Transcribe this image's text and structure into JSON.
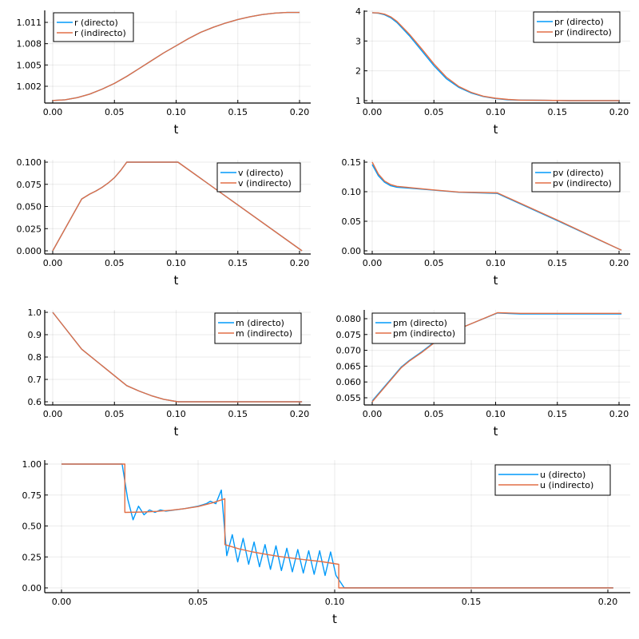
{
  "colors": {
    "directo": "#009AFA",
    "indirecto": "#E26F46"
  },
  "chart_data": [
    {
      "type": "line",
      "id": "r",
      "xlabel": "t",
      "ylabel": "",
      "xlim": [
        0,
        0.2
      ],
      "ylim": [
        1.0,
        1.012
      ],
      "xticks": [
        "0.00",
        "0.05",
        "0.10",
        "0.15",
        "0.20"
      ],
      "xtick_values": [
        0,
        0.05,
        0.1,
        0.15,
        0.2
      ],
      "yticks": [
        "1.002",
        "1.005",
        "1.008",
        "1.011"
      ],
      "ytick_values": [
        1.002,
        1.005,
        1.008,
        1.011
      ],
      "legend": "top-left",
      "series": [
        {
          "name": "r (directo)",
          "color": "#009AFA",
          "x": [
            0,
            0.01,
            0.02,
            0.03,
            0.04,
            0.05,
            0.06,
            0.07,
            0.08,
            0.09,
            0.1,
            0.11,
            0.12,
            0.13,
            0.14,
            0.15,
            0.16,
            0.17,
            0.18,
            0.19,
            0.2
          ],
          "y": [
            1.0,
            1.0001,
            1.0004,
            1.0009,
            1.0016,
            1.0024,
            1.0034,
            1.0045,
            1.0056,
            1.0067,
            1.0077,
            1.0087,
            1.0096,
            1.0103,
            1.0109,
            1.0114,
            1.0118,
            1.0121,
            1.0123,
            1.0124,
            1.0124
          ]
        },
        {
          "name": "r (indirecto)",
          "color": "#E26F46",
          "x": [
            0,
            0.01,
            0.02,
            0.03,
            0.04,
            0.05,
            0.06,
            0.07,
            0.08,
            0.09,
            0.1,
            0.11,
            0.12,
            0.13,
            0.14,
            0.15,
            0.16,
            0.17,
            0.18,
            0.19,
            0.2
          ],
          "y": [
            1.0,
            1.0001,
            1.0004,
            1.0009,
            1.0016,
            1.0024,
            1.0034,
            1.0045,
            1.0056,
            1.0067,
            1.0077,
            1.0087,
            1.0096,
            1.0103,
            1.0109,
            1.0114,
            1.0118,
            1.0121,
            1.0123,
            1.0124,
            1.0124
          ]
        }
      ]
    },
    {
      "type": "line",
      "id": "pr",
      "xlabel": "t",
      "ylabel": "",
      "xlim": [
        0,
        0.2
      ],
      "ylim": [
        1,
        4
      ],
      "xticks": [
        "0.00",
        "0.05",
        "0.10",
        "0.15",
        "0.20"
      ],
      "xtick_values": [
        0,
        0.05,
        0.1,
        0.15,
        0.2
      ],
      "yticks": [
        "1",
        "2",
        "3",
        "4"
      ],
      "ytick_values": [
        1,
        2,
        3,
        4
      ],
      "legend": "top-right",
      "series": [
        {
          "name": "pr (directo)",
          "color": "#009AFA",
          "x": [
            0,
            0.005,
            0.01,
            0.015,
            0.02,
            0.03,
            0.04,
            0.05,
            0.06,
            0.07,
            0.08,
            0.09,
            0.1,
            0.11,
            0.12,
            0.14,
            0.16,
            0.18,
            0.2
          ],
          "y": [
            3.95,
            3.93,
            3.88,
            3.78,
            3.62,
            3.18,
            2.68,
            2.17,
            1.74,
            1.45,
            1.26,
            1.14,
            1.07,
            1.03,
            1.02,
            1.01,
            1.0,
            1.0,
            1.0
          ]
        },
        {
          "name": "pr (indirecto)",
          "color": "#E26F46",
          "x": [
            0,
            0.005,
            0.01,
            0.015,
            0.02,
            0.03,
            0.04,
            0.05,
            0.06,
            0.07,
            0.08,
            0.09,
            0.1,
            0.11,
            0.12,
            0.14,
            0.16,
            0.18,
            0.2
          ],
          "y": [
            3.95,
            3.94,
            3.9,
            3.81,
            3.66,
            3.23,
            2.74,
            2.23,
            1.79,
            1.48,
            1.28,
            1.15,
            1.08,
            1.04,
            1.02,
            1.01,
            1.0,
            1.0,
            1.0
          ]
        }
      ]
    },
    {
      "type": "line",
      "id": "v",
      "xlabel": "t",
      "ylabel": "",
      "xlim": [
        0,
        0.2
      ],
      "ylim": [
        0,
        0.1
      ],
      "xticks": [
        "0.00",
        "0.05",
        "0.10",
        "0.15",
        "0.20"
      ],
      "xtick_values": [
        0,
        0.05,
        0.1,
        0.15,
        0.2
      ],
      "yticks": [
        "0.000",
        "0.025",
        "0.050",
        "0.075",
        "0.100"
      ],
      "ytick_values": [
        0,
        0.025,
        0.05,
        0.075,
        0.1
      ],
      "legend": "top-right",
      "series": [
        {
          "name": "v (directo)",
          "color": "#009AFA",
          "x": [
            0,
            0.0235,
            0.03,
            0.035,
            0.04,
            0.045,
            0.05,
            0.055,
            0.06,
            0.1015,
            0.202
          ],
          "y": [
            0,
            0.0585,
            0.064,
            0.0675,
            0.0715,
            0.0765,
            0.0825,
            0.0905,
            0.1,
            0.1,
            0
          ]
        },
        {
          "name": "v (indirecto)",
          "color": "#E26F46",
          "x": [
            0,
            0.0235,
            0.03,
            0.035,
            0.04,
            0.045,
            0.05,
            0.055,
            0.06,
            0.1015,
            0.202
          ],
          "y": [
            0,
            0.0585,
            0.064,
            0.0675,
            0.0715,
            0.0765,
            0.0825,
            0.0905,
            0.1,
            0.1,
            0
          ]
        }
      ]
    },
    {
      "type": "line",
      "id": "pv",
      "xlabel": "t",
      "ylabel": "",
      "xlim": [
        0,
        0.2
      ],
      "ylim": [
        0,
        0.15
      ],
      "xticks": [
        "0.00",
        "0.05",
        "0.10",
        "0.15",
        "0.20"
      ],
      "xtick_values": [
        0,
        0.05,
        0.1,
        0.15,
        0.2
      ],
      "yticks": [
        "0.00",
        "0.05",
        "0.10",
        "0.15"
      ],
      "ytick_values": [
        0,
        0.05,
        0.1,
        0.15
      ],
      "legend": "top-right",
      "series": [
        {
          "name": "pv (directo)",
          "color": "#009AFA",
          "x": [
            0,
            0.005,
            0.01,
            0.015,
            0.02,
            0.03,
            0.05,
            0.07,
            0.1015,
            0.15,
            0.202
          ],
          "y": [
            0.146,
            0.127,
            0.116,
            0.11,
            0.1075,
            0.106,
            0.1025,
            0.099,
            0.097,
            0.051,
            0.001
          ]
        },
        {
          "name": "pv (indirecto)",
          "color": "#E26F46",
          "x": [
            0,
            0.005,
            0.01,
            0.015,
            0.02,
            0.03,
            0.05,
            0.07,
            0.1015,
            0.15,
            0.202
          ],
          "y": [
            0.15,
            0.13,
            0.118,
            0.112,
            0.109,
            0.107,
            0.103,
            0.0995,
            0.098,
            0.052,
            0.001
          ]
        }
      ]
    },
    {
      "type": "line",
      "id": "m",
      "xlabel": "t",
      "ylabel": "",
      "xlim": [
        0,
        0.2
      ],
      "ylim": [
        0.6,
        1.0
      ],
      "xticks": [
        "0.00",
        "0.05",
        "0.10",
        "0.15",
        "0.20"
      ],
      "xtick_values": [
        0,
        0.05,
        0.1,
        0.15,
        0.2
      ],
      "yticks": [
        "0.6",
        "0.7",
        "0.8",
        "0.9",
        "1.0"
      ],
      "ytick_values": [
        0.6,
        0.7,
        0.8,
        0.9,
        1.0
      ],
      "legend": "top-right",
      "series": [
        {
          "name": "m (directo)",
          "color": "#009AFA",
          "x": [
            0,
            0.0235,
            0.06,
            0.07,
            0.08,
            0.09,
            0.1015,
            0.202
          ],
          "y": [
            1.0,
            0.835,
            0.672,
            0.648,
            0.627,
            0.611,
            0.6,
            0.6
          ]
        },
        {
          "name": "m (indirecto)",
          "color": "#E26F46",
          "x": [
            0,
            0.0235,
            0.06,
            0.07,
            0.08,
            0.09,
            0.1015,
            0.202
          ],
          "y": [
            1.0,
            0.835,
            0.672,
            0.648,
            0.627,
            0.611,
            0.6,
            0.6
          ]
        }
      ]
    },
    {
      "type": "line",
      "id": "pm",
      "xlabel": "t",
      "ylabel": "",
      "xlim": [
        0,
        0.2
      ],
      "ylim": [
        0.053,
        0.0825
      ],
      "xticks": [
        "0.00",
        "0.05",
        "0.10",
        "0.15",
        "0.20"
      ],
      "xtick_values": [
        0,
        0.05,
        0.1,
        0.15,
        0.2
      ],
      "yticks": [
        "0.055",
        "0.060",
        "0.065",
        "0.070",
        "0.075",
        "0.080"
      ],
      "ytick_values": [
        0.055,
        0.06,
        0.065,
        0.07,
        0.075,
        0.08
      ],
      "legend": "top-left",
      "series": [
        {
          "name": "pm (directo)",
          "color": "#009AFA",
          "x": [
            0,
            0.0235,
            0.03,
            0.04,
            0.05,
            0.06,
            0.1015,
            0.12,
            0.202
          ],
          "y": [
            0.054,
            0.0647,
            0.0668,
            0.0695,
            0.0725,
            0.0752,
            0.0818,
            0.0815,
            0.0815
          ]
        },
        {
          "name": "pm (indirecto)",
          "color": "#E26F46",
          "x": [
            0,
            0.0235,
            0.03,
            0.04,
            0.05,
            0.06,
            0.1015,
            0.12,
            0.202
          ],
          "y": [
            0.0537,
            0.0645,
            0.0666,
            0.0693,
            0.0723,
            0.0751,
            0.0819,
            0.0817,
            0.0817
          ]
        }
      ]
    },
    {
      "type": "line",
      "id": "u",
      "xlabel": "t",
      "ylabel": "",
      "xlim": [
        0,
        0.2
      ],
      "ylim": [
        0,
        1
      ],
      "xticks": [
        "0.00",
        "0.05",
        "0.10",
        "0.15",
        "0.20"
      ],
      "xtick_values": [
        0,
        0.05,
        0.1,
        0.15,
        0.2
      ],
      "yticks": [
        "0.00",
        "0.25",
        "0.50",
        "0.75",
        "1.00"
      ],
      "ytick_values": [
        0,
        0.25,
        0.5,
        0.75,
        1.0
      ],
      "legend": "top-right",
      "series": [
        {
          "name": "u (directo)",
          "color": "#009AFA",
          "x": [
            0,
            0.0222,
            0.0242,
            0.0262,
            0.0282,
            0.0302,
            0.0322,
            0.0342,
            0.0362,
            0.0382,
            0.045,
            0.05,
            0.053,
            0.0545,
            0.0565,
            0.0585,
            0.0605,
            0.0625,
            0.0645,
            0.0665,
            0.0685,
            0.0705,
            0.0725,
            0.0745,
            0.0765,
            0.0785,
            0.0805,
            0.0825,
            0.0845,
            0.0865,
            0.0885,
            0.0905,
            0.0925,
            0.0945,
            0.0965,
            0.0985,
            0.1005,
            0.1035,
            0.202
          ],
          "y": [
            1.0,
            1.0,
            0.72,
            0.55,
            0.66,
            0.59,
            0.63,
            0.61,
            0.63,
            0.62,
            0.64,
            0.66,
            0.68,
            0.7,
            0.68,
            0.79,
            0.26,
            0.43,
            0.21,
            0.4,
            0.19,
            0.37,
            0.17,
            0.35,
            0.15,
            0.34,
            0.14,
            0.32,
            0.13,
            0.31,
            0.12,
            0.3,
            0.11,
            0.3,
            0.1,
            0.29,
            0.1,
            0.0,
            0.0
          ]
        },
        {
          "name": "u (indirecto)",
          "color": "#E26F46",
          "x": [
            0,
            0.0232,
            0.0232,
            0.03,
            0.035,
            0.04,
            0.045,
            0.05,
            0.055,
            0.0598,
            0.0598,
            0.065,
            0.07,
            0.075,
            0.08,
            0.085,
            0.09,
            0.095,
            0.1015,
            0.1015,
            0.202
          ],
          "y": [
            1.0,
            1.0,
            0.61,
            0.613,
            0.618,
            0.627,
            0.64,
            0.657,
            0.685,
            0.72,
            0.35,
            0.315,
            0.29,
            0.27,
            0.253,
            0.238,
            0.225,
            0.213,
            0.19,
            0.0,
            0.0
          ]
        }
      ]
    }
  ]
}
